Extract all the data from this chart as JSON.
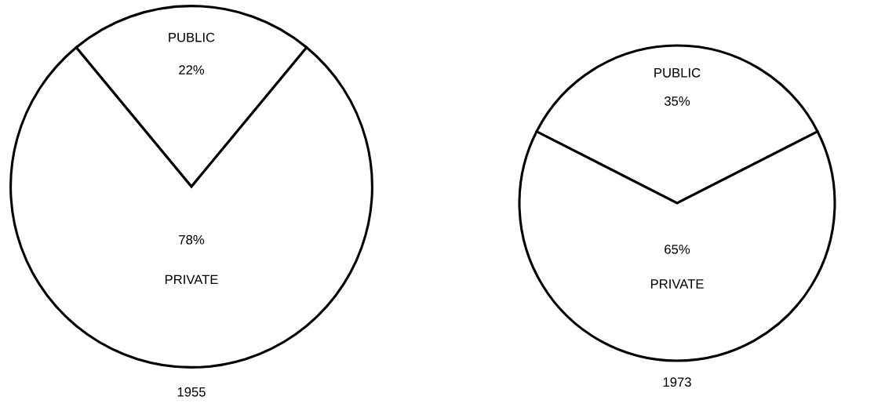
{
  "chart_data": [
    {
      "type": "pie",
      "title": "1955",
      "categories": [
        "PUBLIC",
        "PRIVATE"
      ],
      "values": [
        22,
        78
      ],
      "value_labels": [
        "22%",
        "78%"
      ],
      "colors": [
        "#ffffff",
        "#ffffff"
      ]
    },
    {
      "type": "pie",
      "title": "1973",
      "categories": [
        "PUBLIC",
        "PRIVATE"
      ],
      "values": [
        35,
        65
      ],
      "value_labels": [
        "35%",
        "65%"
      ],
      "colors": [
        "#ffffff",
        "#ffffff"
      ]
    }
  ]
}
